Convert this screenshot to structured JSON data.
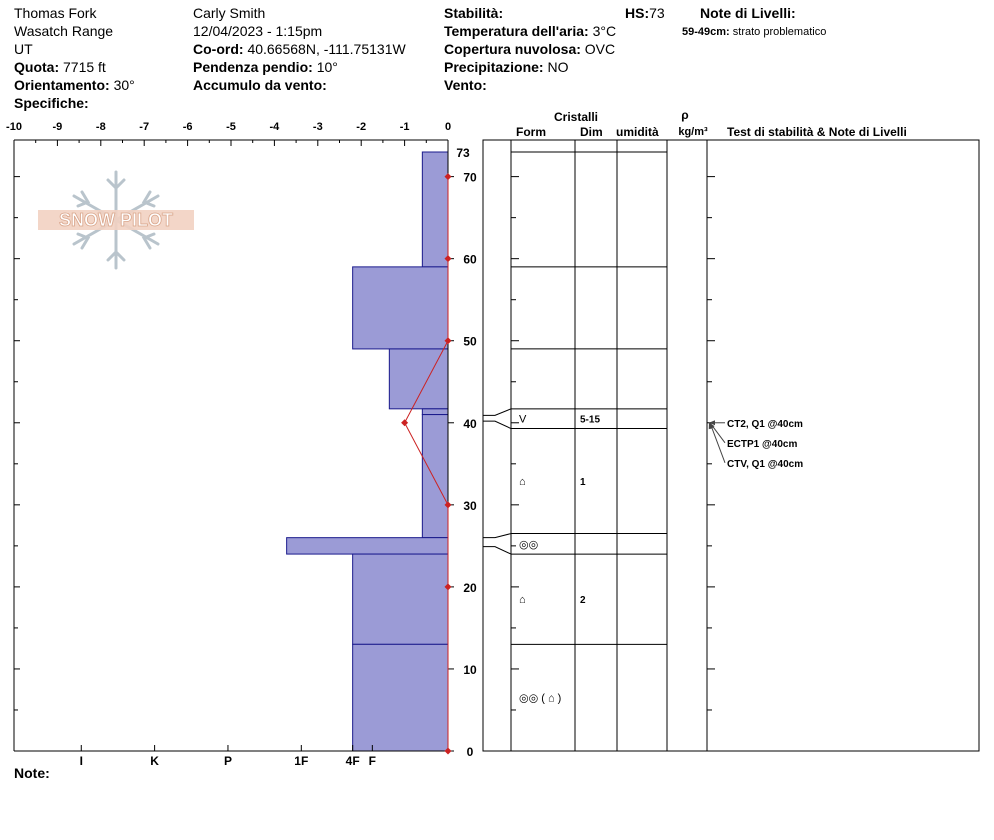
{
  "header": {
    "location": "Thomas Fork",
    "range": "Wasatch Range",
    "state": "UT",
    "elevation_label": "Quota:",
    "elevation_value": "7715 ft",
    "aspect_label": "Orientamento:",
    "aspect_value": "30°",
    "specifics_label": "Specifiche:",
    "observer": "Carly Smith",
    "datetime": "12/04/2023 - 1:15pm",
    "coords_label": "Co-ord:",
    "coords_value": "40.66568N, -111.75131W",
    "slope_label": "Pendenza pendio:",
    "slope_value": "10°",
    "wind_loading_label": "Accumulo da vento:",
    "stability_label": "Stabilità:",
    "hs_label": "HS:",
    "hs_value": "73",
    "air_temp_label": "Temperatura dell'aria:",
    "air_temp_value": "3°C",
    "cloud_label": "Copertura nuvolosa:",
    "cloud_value": "OVC",
    "precip_label": "Precipitazione:",
    "precip_value": "NO",
    "wind_label": "Vento:",
    "layer_notes_title": "Note di Livelli:",
    "layer_note_range": "59-49cm:",
    "layer_note_text": "strato problematico"
  },
  "logo_text": "SNOW PILOT",
  "notes_label": "Note:",
  "columns": {
    "crystals": "Cristalli",
    "form": "Form",
    "size": "Dim",
    "moisture": "umidità",
    "density_symbol": "ρ",
    "density_unit": "kg/m³",
    "stability_notes": "Test di stabilità & Note di Livelli"
  },
  "colors": {
    "hardness_fill": "#9b9bd6",
    "hardness_stroke": "#1a1a8c",
    "temp_line": "#cc2222",
    "grid": "#000000"
  },
  "chart_data": {
    "type": "snow-profile",
    "height_axis": {
      "min": 0,
      "max": 73,
      "ticks": [
        0,
        10,
        20,
        30,
        40,
        50,
        60,
        70
      ],
      "top_label": "73"
    },
    "temperature_axis": {
      "min": -10,
      "max": 0,
      "ticks": [
        "-10",
        "-9",
        "-8",
        "-7",
        "-6",
        "-5",
        "-4",
        "-3",
        "-2",
        "-1",
        "0"
      ]
    },
    "hardness_axis": {
      "labels": [
        "I",
        "K",
        "P",
        "1F",
        "4F",
        "F"
      ],
      "scale_positions": [
        5,
        4,
        3,
        2,
        1.3,
        0.35
      ]
    },
    "hardness_layers": [
      {
        "top": 73,
        "bottom": 59,
        "hardness_index": 0.35
      },
      {
        "top": 59,
        "bottom": 49,
        "hardness_index": 1.3
      },
      {
        "top": 49,
        "bottom": 41.7,
        "hardness_index": 0.8
      },
      {
        "top": 41.7,
        "bottom": 41,
        "hardness_index": 0.35
      },
      {
        "top": 41,
        "bottom": 26,
        "hardness_index": 0.35
      },
      {
        "top": 26,
        "bottom": 24,
        "hardness_index": 2.2
      },
      {
        "top": 24,
        "bottom": 13,
        "hardness_index": 1.3
      },
      {
        "top": 13,
        "bottom": 0,
        "hardness_index": 1.3
      }
    ],
    "temperature_profile": [
      {
        "height": 0,
        "temp": 0
      },
      {
        "height": 20,
        "temp": 0
      },
      {
        "height": 30,
        "temp": 0
      },
      {
        "height": 40,
        "temp": -1
      },
      {
        "height": 50,
        "temp": 0
      },
      {
        "height": 60,
        "temp": 0
      },
      {
        "height": 70,
        "temp": 0
      }
    ],
    "layer_boundaries": [
      73,
      59,
      49,
      41.7,
      39.3,
      26.5,
      24,
      13,
      0
    ],
    "layers": [
      {
        "top": 73,
        "bottom": 59,
        "form": "",
        "size": ""
      },
      {
        "top": 59,
        "bottom": 49,
        "form": "",
        "size": ""
      },
      {
        "top": 49,
        "bottom": 41.7,
        "form": "",
        "size": ""
      },
      {
        "top": 41.7,
        "bottom": 39.3,
        "form": "V",
        "size": "5-15"
      },
      {
        "top": 39.3,
        "bottom": 26.5,
        "form": "⌂",
        "size": "1"
      },
      {
        "top": 26.5,
        "bottom": 24,
        "form": "◎◎",
        "size": ""
      },
      {
        "top": 24,
        "bottom": 13,
        "form": "⌂",
        "size": "2"
      },
      {
        "top": 13,
        "bottom": 0,
        "form": "◎◎ ( ⌂ )",
        "size": ""
      }
    ],
    "stability_tests": [
      "CT2, Q1 @40cm",
      "ECTP1 @40cm",
      "CTV, Q1 @40cm"
    ]
  }
}
